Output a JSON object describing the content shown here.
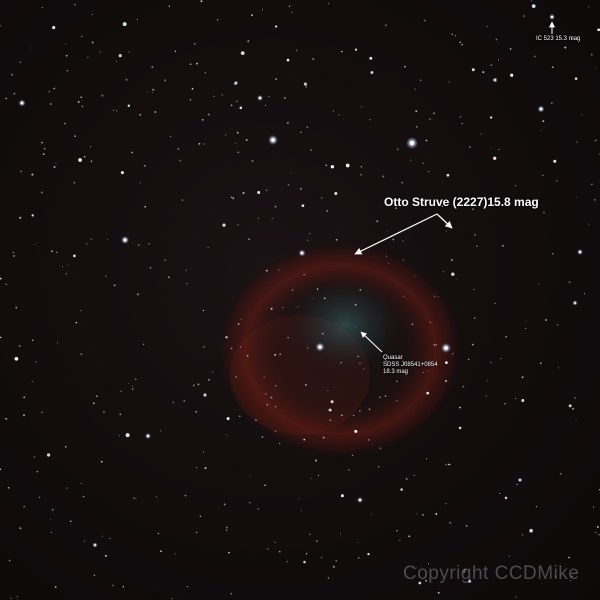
{
  "annotations": {
    "ic_label": "IC 523 15.3 mag",
    "struve_label": "Otto Struve (2227)15.8 mag",
    "quasar_lines": [
      "Quasar",
      "SDSS J08541+0854",
      "18.3 mag"
    ]
  },
  "watermark": "Copyright CCDMike",
  "colors": {
    "background": "#120c0d",
    "nebula": "#7a2018",
    "nebula_core": "#2e5a5a",
    "label": "#ffffff"
  }
}
